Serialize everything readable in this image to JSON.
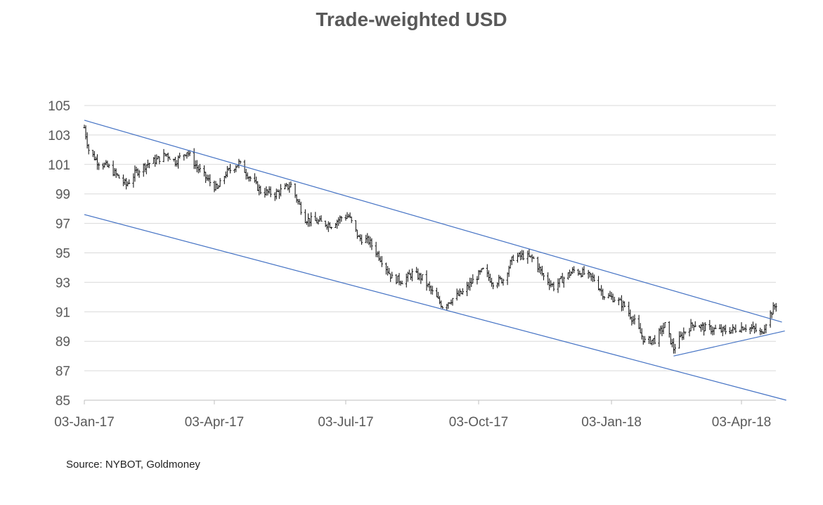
{
  "chart_data": {
    "type": "line",
    "style": "ohlc-bars",
    "title": "Trade-weighted USD",
    "xlabel": "",
    "ylabel": "",
    "ylim": [
      85,
      105
    ],
    "y_ticks": [
      85,
      87,
      89,
      91,
      93,
      95,
      97,
      99,
      101,
      103,
      105
    ],
    "x_ticks": [
      "03-Jan-17",
      "03-Apr-17",
      "03-Jul-17",
      "03-Oct-17",
      "03-Jan-18",
      "03-Apr-18"
    ],
    "xlim": [
      "2017-01-03",
      "2018-04-30"
    ],
    "grid": true,
    "legend": "none",
    "series_color": "#1a1a1a",
    "trendline_color": "#4472c4",
    "grid_color": "#d9d9d9",
    "axis_color": "#bfbfbf",
    "anchors": [
      [
        "2017-01-03",
        103.5
      ],
      [
        "2017-01-06",
        102.0
      ],
      [
        "2017-01-12",
        101.2
      ],
      [
        "2017-01-20",
        100.8
      ],
      [
        "2017-02-01",
        99.6
      ],
      [
        "2017-02-08",
        100.5
      ],
      [
        "2017-02-15",
        101.0
      ],
      [
        "2017-02-22",
        101.3
      ],
      [
        "2017-03-01",
        101.7
      ],
      [
        "2017-03-07",
        101.2
      ],
      [
        "2017-03-15",
        101.9
      ],
      [
        "2017-03-22",
        100.8
      ],
      [
        "2017-03-29",
        100.0
      ],
      [
        "2017-04-05",
        99.3
      ],
      [
        "2017-04-11",
        100.4
      ],
      [
        "2017-04-20",
        101.1
      ],
      [
        "2017-04-27",
        100.2
      ],
      [
        "2017-05-05",
        99.2
      ],
      [
        "2017-05-15",
        99.0
      ],
      [
        "2017-05-26",
        99.6
      ],
      [
        "2017-06-05",
        97.3
      ],
      [
        "2017-06-14",
        97.1
      ],
      [
        "2017-06-23",
        96.9
      ],
      [
        "2017-06-30",
        97.4
      ],
      [
        "2017-07-05",
        97.5
      ],
      [
        "2017-07-12",
        96.0
      ],
      [
        "2017-07-19",
        95.8
      ],
      [
        "2017-07-28",
        94.5
      ],
      [
        "2017-08-04",
        93.3
      ],
      [
        "2017-08-11",
        93.1
      ],
      [
        "2017-08-18",
        93.6
      ],
      [
        "2017-08-25",
        93.3
      ],
      [
        "2017-09-01",
        92.3
      ],
      [
        "2017-09-08",
        91.4
      ],
      [
        "2017-09-15",
        91.9
      ],
      [
        "2017-09-22",
        92.3
      ],
      [
        "2017-09-29",
        93.1
      ],
      [
        "2017-10-06",
        93.8
      ],
      [
        "2017-10-13",
        93.0
      ],
      [
        "2017-10-20",
        93.2
      ],
      [
        "2017-10-27",
        94.7
      ],
      [
        "2017-11-03",
        94.8
      ],
      [
        "2017-11-10",
        94.6
      ],
      [
        "2017-11-17",
        93.4
      ],
      [
        "2017-11-24",
        92.7
      ],
      [
        "2017-12-01",
        93.3
      ],
      [
        "2017-12-08",
        93.8
      ],
      [
        "2017-12-15",
        93.6
      ],
      [
        "2017-12-22",
        93.2
      ],
      [
        "2017-12-29",
        92.1
      ],
      [
        "2018-01-05",
        91.9
      ],
      [
        "2018-01-12",
        91.4
      ],
      [
        "2018-01-19",
        90.3
      ],
      [
        "2018-01-26",
        89.0
      ],
      [
        "2018-02-02",
        89.1
      ],
      [
        "2018-02-09",
        90.1
      ],
      [
        "2018-02-15",
        88.5
      ],
      [
        "2018-02-22",
        89.6
      ],
      [
        "2018-03-01",
        90.2
      ],
      [
        "2018-03-08",
        89.9
      ],
      [
        "2018-03-15",
        89.8
      ],
      [
        "2018-03-22",
        89.7
      ],
      [
        "2018-03-29",
        89.8
      ],
      [
        "2018-04-05",
        90.0
      ],
      [
        "2018-04-12",
        89.8
      ],
      [
        "2018-04-17",
        89.5
      ],
      [
        "2018-04-20",
        90.3
      ],
      [
        "2018-04-25",
        91.2
      ],
      [
        "2018-04-27",
        91.5
      ]
    ],
    "trendlines": [
      {
        "name": "upper-channel",
        "start": [
          "2017-01-03",
          104.0
        ],
        "end": [
          "2018-05-01",
          90.3
        ]
      },
      {
        "name": "lower-channel",
        "start": [
          "2017-01-03",
          97.6
        ],
        "end": [
          "2018-05-04",
          85.0
        ]
      },
      {
        "name": "support",
        "start": [
          "2018-02-15",
          88.0
        ],
        "end": [
          "2018-05-03",
          89.7
        ]
      }
    ]
  },
  "source": "Source: NYBOT, Goldmoney"
}
